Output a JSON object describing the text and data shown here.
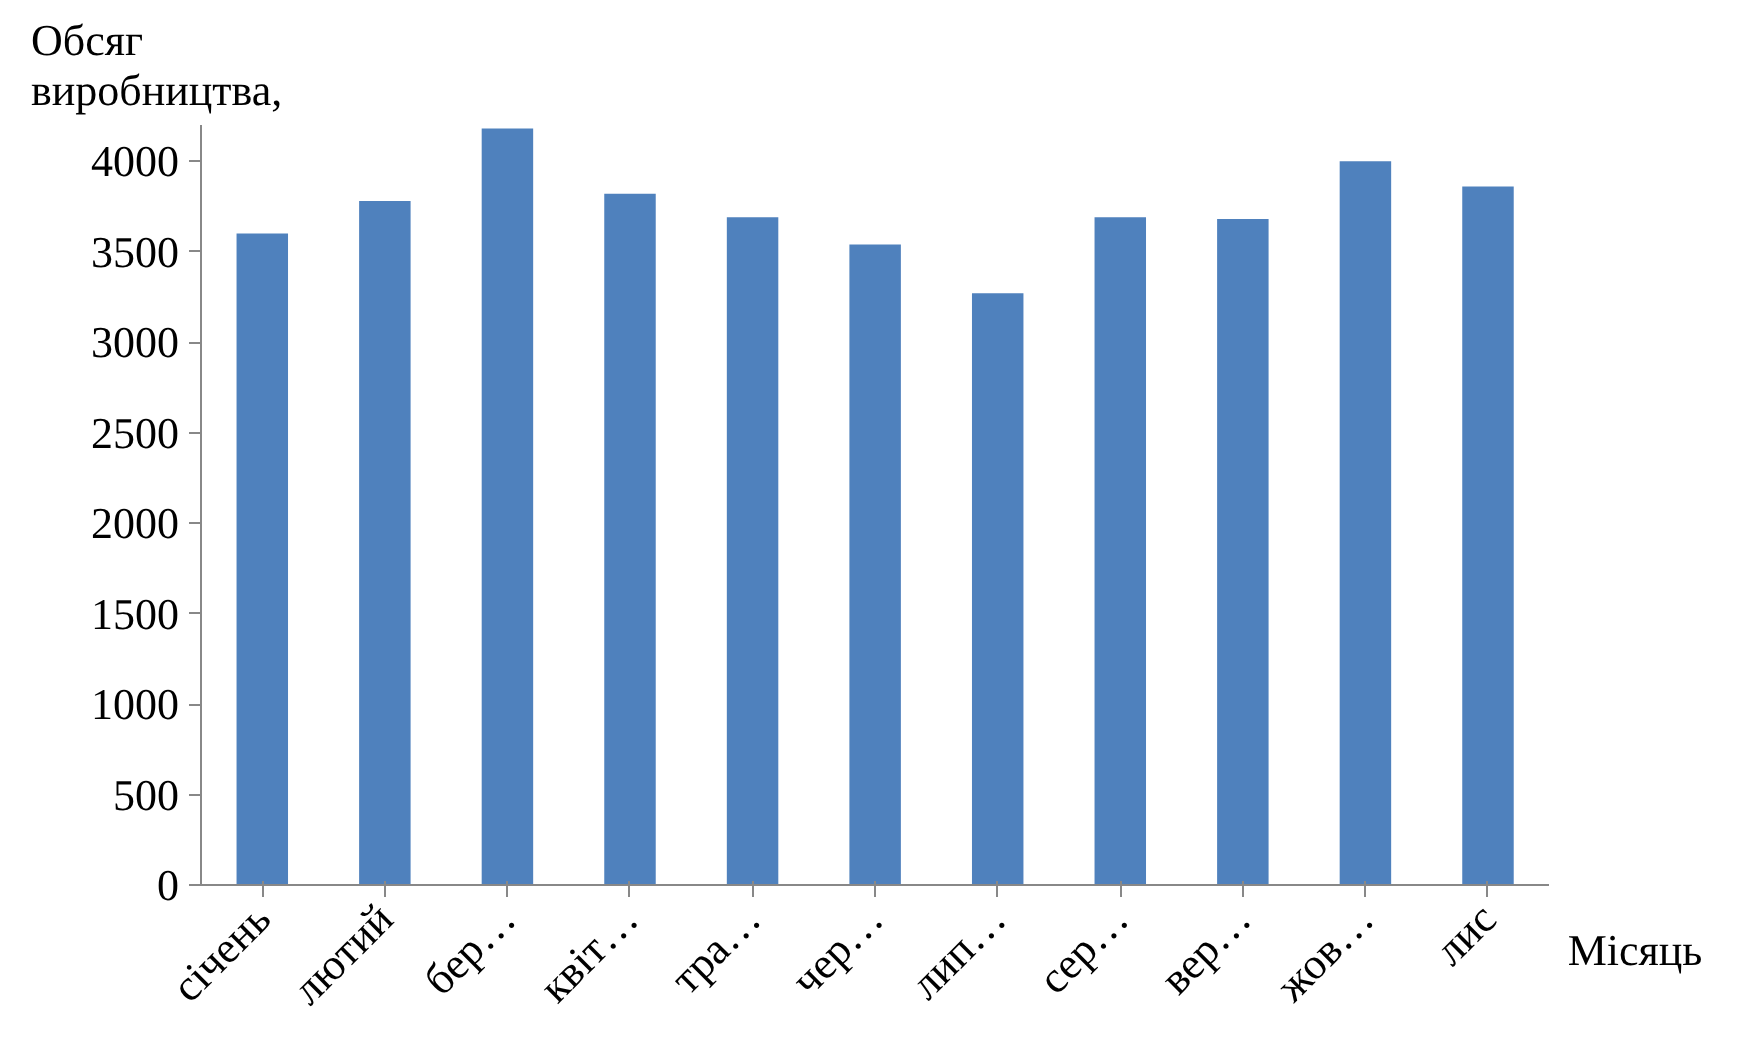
{
  "chart_data": {
    "type": "bar",
    "ylabel": "Обсяг виробництва,",
    "xlabel": "Місяць",
    "categories": [
      "січень",
      "лютий",
      "бер…",
      "квіт…",
      "тра…",
      "чер…",
      "лип…",
      "сер…",
      "вер…",
      "жов…",
      "лис"
    ],
    "values": [
      3600,
      3780,
      4180,
      3820,
      3690,
      3540,
      3270,
      3690,
      3680,
      4000,
      3860
    ],
    "color": "#4f81bd",
    "ylim": [
      0,
      4200
    ],
    "yticks": [
      0,
      500,
      1000,
      1500,
      2000,
      2500,
      3000,
      3500,
      4000
    ],
    "grid": false
  }
}
